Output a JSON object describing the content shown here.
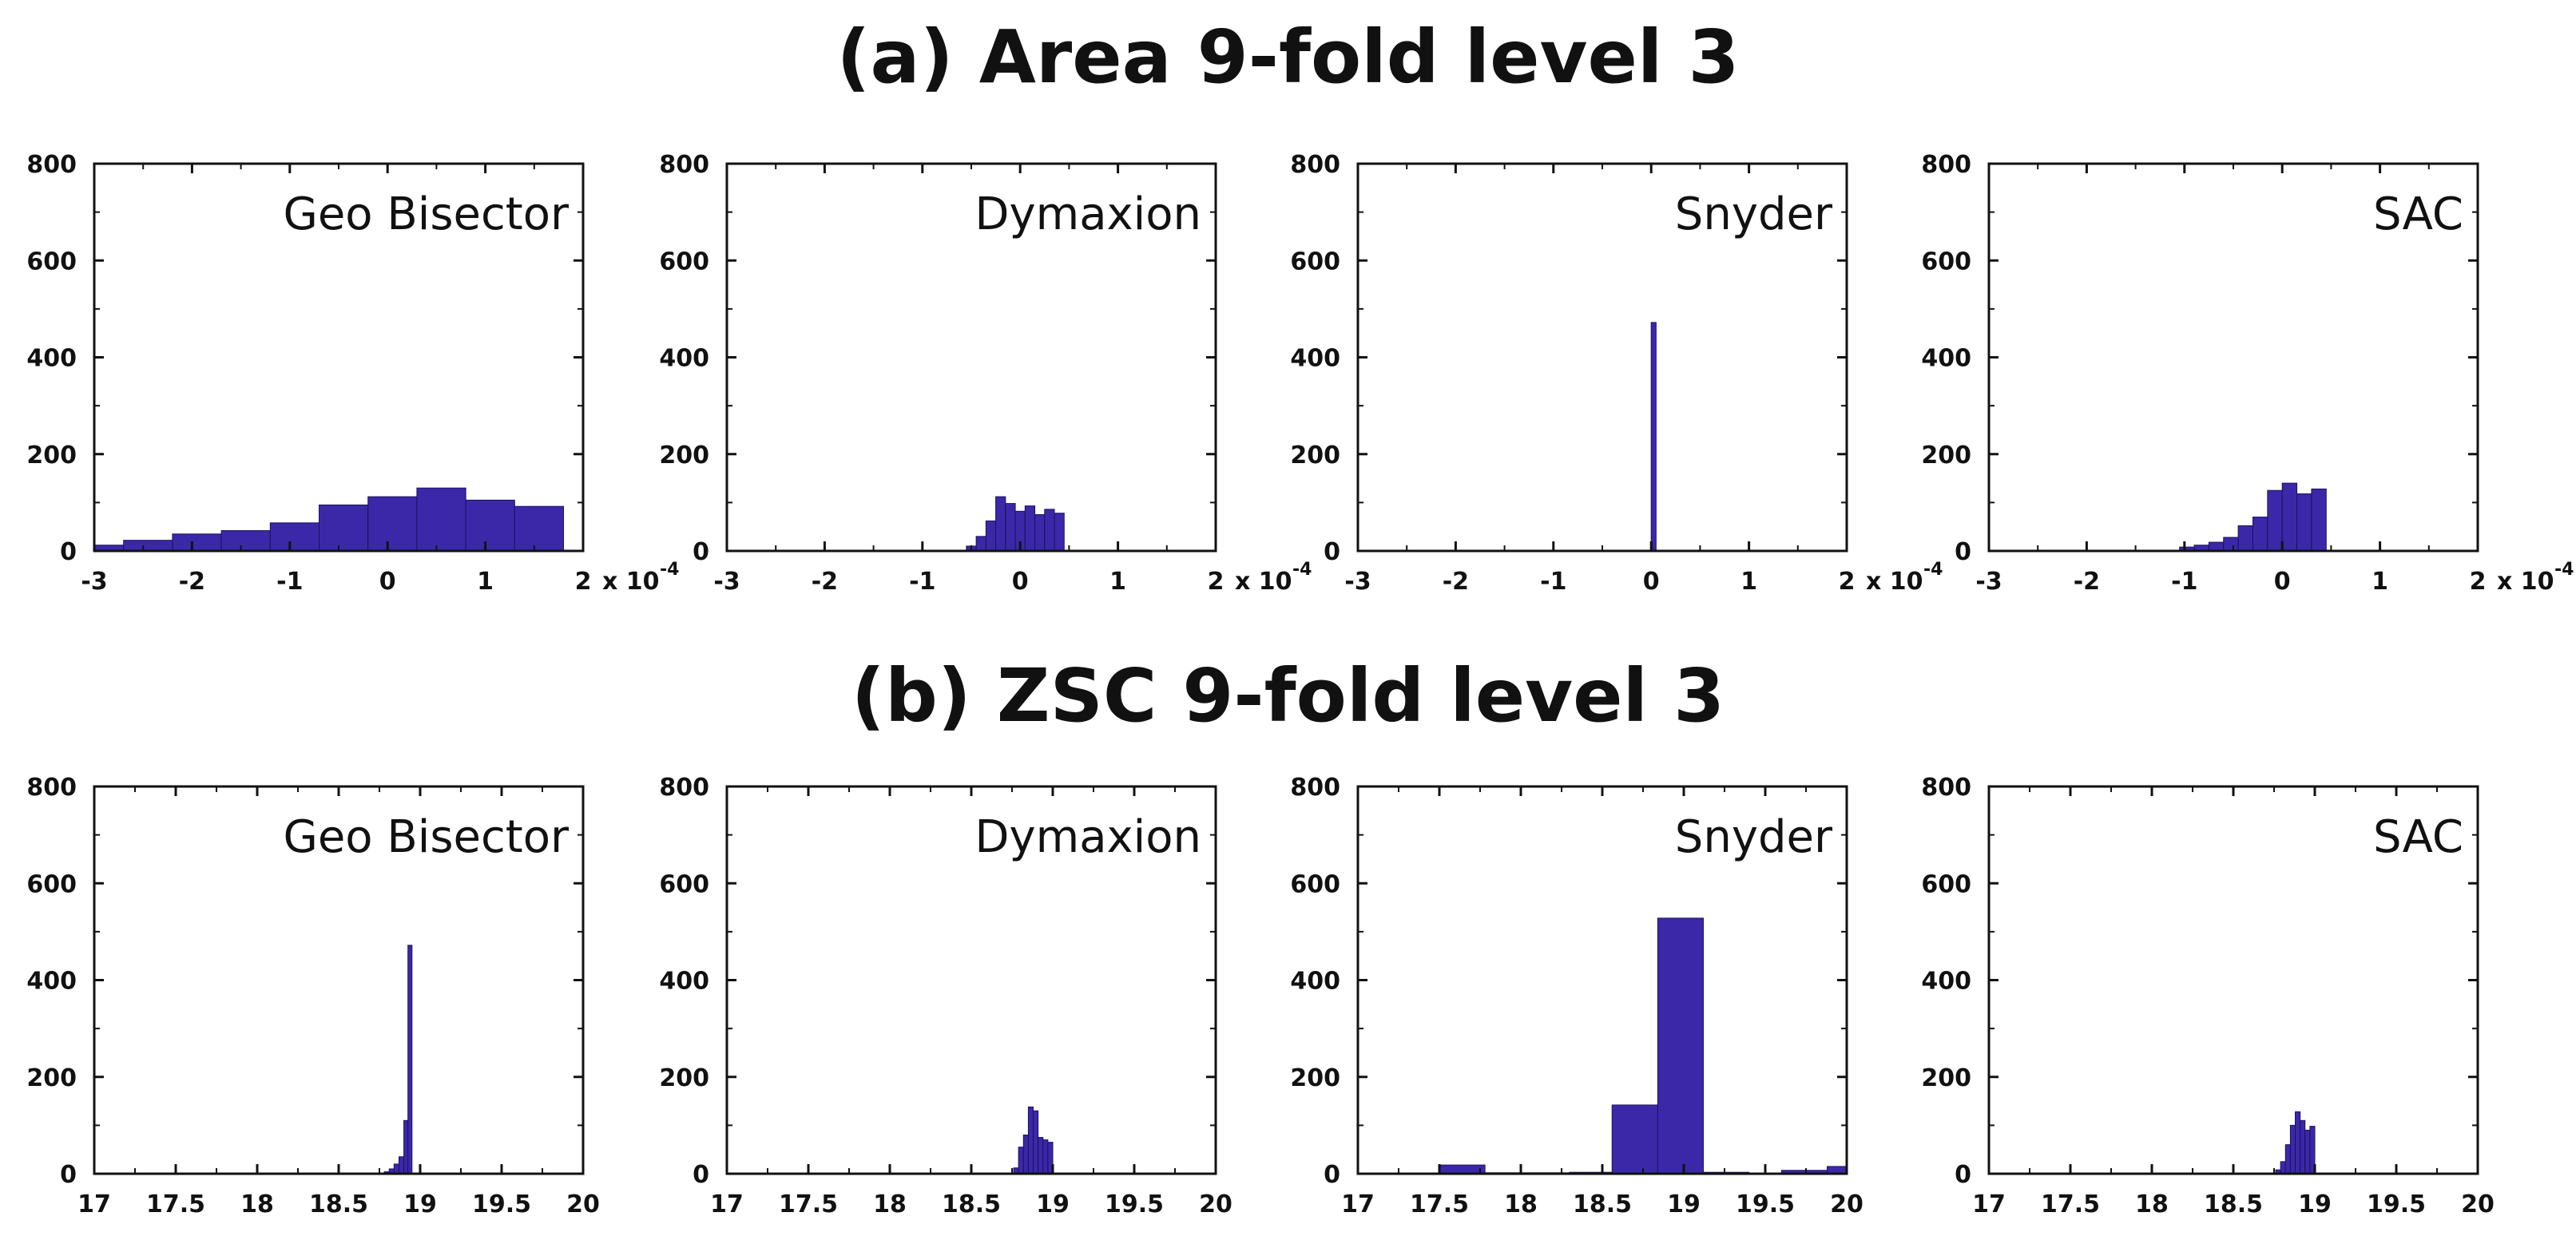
{
  "titles": {
    "a": "(a) Area 9-fold level 3",
    "b": "(b) ZSC 9-fold level 3"
  },
  "colors": {
    "bar": "#3b28a8",
    "axis": "#111111"
  },
  "chart_data": [
    {
      "type": "bar",
      "group": "a",
      "title": "Geo Bisector",
      "xlim": [
        -3,
        2
      ],
      "ylim": [
        0,
        800
      ],
      "xticks": [
        -3,
        -2,
        -1,
        0,
        1,
        2
      ],
      "yticks": [
        0,
        200,
        400,
        600,
        800
      ],
      "xtick_labels": [
        "-3",
        "-2",
        "-1",
        "0",
        "1",
        "2"
      ],
      "ytick_labels": [
        "0",
        "200",
        "400",
        "600",
        "800"
      ],
      "x_multiplier": "x 10",
      "x_exponent": "-4",
      "bins": [
        {
          "x0": -3.0,
          "x1": -2.7,
          "y": 12
        },
        {
          "x0": -2.7,
          "x1": -2.2,
          "y": 22
        },
        {
          "x0": -2.2,
          "x1": -1.7,
          "y": 35
        },
        {
          "x0": -1.7,
          "x1": -1.2,
          "y": 42
        },
        {
          "x0": -1.2,
          "x1": -0.7,
          "y": 58
        },
        {
          "x0": -0.7,
          "x1": -0.2,
          "y": 95
        },
        {
          "x0": -0.2,
          "x1": 0.3,
          "y": 112
        },
        {
          "x0": 0.3,
          "x1": 0.8,
          "y": 130
        },
        {
          "x0": 0.8,
          "x1": 1.3,
          "y": 105
        },
        {
          "x0": 1.3,
          "x1": 1.8,
          "y": 92
        }
      ]
    },
    {
      "type": "bar",
      "group": "a",
      "title": "Dymaxion",
      "xlim": [
        -3,
        2
      ],
      "ylim": [
        0,
        800
      ],
      "xticks": [
        -3,
        -2,
        -1,
        0,
        1,
        2
      ],
      "yticks": [
        0,
        200,
        400,
        600,
        800
      ],
      "xtick_labels": [
        "-3",
        "-2",
        "-1",
        "0",
        "1",
        "2"
      ],
      "ytick_labels": [
        "0",
        "200",
        "400",
        "600",
        "800"
      ],
      "x_multiplier": "x 10",
      "x_exponent": "-4",
      "bins": [
        {
          "x0": -0.55,
          "x1": -0.45,
          "y": 10
        },
        {
          "x0": -0.45,
          "x1": -0.35,
          "y": 30
        },
        {
          "x0": -0.35,
          "x1": -0.25,
          "y": 62
        },
        {
          "x0": -0.25,
          "x1": -0.15,
          "y": 112
        },
        {
          "x0": -0.15,
          "x1": -0.05,
          "y": 98
        },
        {
          "x0": -0.05,
          "x1": 0.05,
          "y": 82
        },
        {
          "x0": 0.05,
          "x1": 0.15,
          "y": 93
        },
        {
          "x0": 0.15,
          "x1": 0.25,
          "y": 75
        },
        {
          "x0": 0.25,
          "x1": 0.35,
          "y": 86
        },
        {
          "x0": 0.35,
          "x1": 0.45,
          "y": 78
        }
      ]
    },
    {
      "type": "bar",
      "group": "a",
      "title": "Snyder",
      "xlim": [
        -3,
        2
      ],
      "ylim": [
        0,
        800
      ],
      "xticks": [
        -3,
        -2,
        -1,
        0,
        1,
        2
      ],
      "yticks": [
        0,
        200,
        400,
        600,
        800
      ],
      "xtick_labels": [
        "-3",
        "-2",
        "-1",
        "0",
        "1",
        "2"
      ],
      "ytick_labels": [
        "0",
        "200",
        "400",
        "600",
        "800"
      ],
      "x_multiplier": "x 10",
      "x_exponent": "-4",
      "bins": [
        {
          "x0": 0.0,
          "x1": 0.05,
          "y": 472
        }
      ]
    },
    {
      "type": "bar",
      "group": "a",
      "title": "SAC",
      "xlim": [
        -3,
        2
      ],
      "ylim": [
        0,
        800
      ],
      "xticks": [
        -3,
        -2,
        -1,
        0,
        1,
        2
      ],
      "yticks": [
        0,
        200,
        400,
        600,
        800
      ],
      "xtick_labels": [
        "-3",
        "-2",
        "-1",
        "0",
        "1",
        "2"
      ],
      "ytick_labels": [
        "0",
        "200",
        "400",
        "600",
        "800"
      ],
      "x_multiplier": "x 10",
      "x_exponent": "-4",
      "bins": [
        {
          "x0": -1.05,
          "x1": -0.9,
          "y": 8
        },
        {
          "x0": -0.9,
          "x1": -0.75,
          "y": 12
        },
        {
          "x0": -0.75,
          "x1": -0.6,
          "y": 18
        },
        {
          "x0": -0.6,
          "x1": -0.45,
          "y": 28
        },
        {
          "x0": -0.45,
          "x1": -0.3,
          "y": 52
        },
        {
          "x0": -0.3,
          "x1": -0.15,
          "y": 70
        },
        {
          "x0": -0.15,
          "x1": 0.0,
          "y": 125
        },
        {
          "x0": 0.0,
          "x1": 0.15,
          "y": 140
        },
        {
          "x0": 0.15,
          "x1": 0.3,
          "y": 118
        },
        {
          "x0": 0.3,
          "x1": 0.45,
          "y": 128
        }
      ]
    },
    {
      "type": "bar",
      "group": "b",
      "title": "Geo Bisector",
      "xlim": [
        17,
        20
      ],
      "ylim": [
        0,
        800
      ],
      "xticks": [
        17,
        17.5,
        18,
        18.5,
        19,
        19.5,
        20
      ],
      "yticks": [
        0,
        200,
        400,
        600,
        800
      ],
      "xtick_labels": [
        "17",
        "17.5",
        "18",
        "18.5",
        "19",
        "19.5",
        "20"
      ],
      "ytick_labels": [
        "0",
        "200",
        "400",
        "600",
        "800"
      ],
      "bins": [
        {
          "x0": 18.78,
          "x1": 18.81,
          "y": 4
        },
        {
          "x0": 18.81,
          "x1": 18.84,
          "y": 10
        },
        {
          "x0": 18.84,
          "x1": 18.87,
          "y": 20
        },
        {
          "x0": 18.87,
          "x1": 18.9,
          "y": 35
        },
        {
          "x0": 18.9,
          "x1": 18.925,
          "y": 110
        },
        {
          "x0": 18.925,
          "x1": 18.95,
          "y": 472
        }
      ]
    },
    {
      "type": "bar",
      "group": "b",
      "title": "Dymaxion",
      "xlim": [
        17,
        20
      ],
      "ylim": [
        0,
        800
      ],
      "xticks": [
        17,
        17.5,
        18,
        18.5,
        19,
        19.5,
        20
      ],
      "yticks": [
        0,
        200,
        400,
        600,
        800
      ],
      "xtick_labels": [
        "17",
        "17.5",
        "18",
        "18.5",
        "19",
        "19.5",
        "20"
      ],
      "ytick_labels": [
        "0",
        "200",
        "400",
        "600",
        "800"
      ],
      "bins": [
        {
          "x0": 18.76,
          "x1": 18.79,
          "y": 12
        },
        {
          "x0": 18.79,
          "x1": 18.82,
          "y": 55
        },
        {
          "x0": 18.82,
          "x1": 18.85,
          "y": 80
        },
        {
          "x0": 18.85,
          "x1": 18.88,
          "y": 138
        },
        {
          "x0": 18.88,
          "x1": 18.91,
          "y": 130
        },
        {
          "x0": 18.91,
          "x1": 18.94,
          "y": 75
        },
        {
          "x0": 18.94,
          "x1": 18.97,
          "y": 70
        },
        {
          "x0": 18.97,
          "x1": 19.0,
          "y": 65
        }
      ]
    },
    {
      "type": "bar",
      "group": "b",
      "title": "Snyder",
      "xlim": [
        17,
        20
      ],
      "ylim": [
        0,
        800
      ],
      "xticks": [
        17,
        17.5,
        18,
        18.5,
        19,
        19.5,
        20
      ],
      "yticks": [
        0,
        200,
        400,
        600,
        800
      ],
      "xtick_labels": [
        "17",
        "17.5",
        "18",
        "18.5",
        "19",
        "19.5",
        "20"
      ],
      "ytick_labels": [
        "0",
        "200",
        "400",
        "600",
        "800"
      ],
      "bins": [
        {
          "x0": 17.5,
          "x1": 17.78,
          "y": 18
        },
        {
          "x0": 17.78,
          "x1": 18.3,
          "y": 2
        },
        {
          "x0": 18.3,
          "x1": 18.56,
          "y": 3
        },
        {
          "x0": 18.56,
          "x1": 18.84,
          "y": 142
        },
        {
          "x0": 18.84,
          "x1": 19.12,
          "y": 528
        },
        {
          "x0": 19.12,
          "x1": 19.4,
          "y": 3
        },
        {
          "x0": 19.6,
          "x1": 19.88,
          "y": 7
        },
        {
          "x0": 19.88,
          "x1": 20.0,
          "y": 15
        }
      ]
    },
    {
      "type": "bar",
      "group": "b",
      "title": "SAC",
      "xlim": [
        17,
        20
      ],
      "ylim": [
        0,
        800
      ],
      "xticks": [
        17,
        17.5,
        18,
        18.5,
        19,
        19.5,
        20
      ],
      "yticks": [
        0,
        200,
        400,
        600,
        800
      ],
      "xtick_labels": [
        "17",
        "17.5",
        "18",
        "18.5",
        "19",
        "19.5",
        "20"
      ],
      "ytick_labels": [
        "0",
        "200",
        "400",
        "600",
        "800"
      ],
      "bins": [
        {
          "x0": 18.76,
          "x1": 18.79,
          "y": 8
        },
        {
          "x0": 18.79,
          "x1": 18.82,
          "y": 25
        },
        {
          "x0": 18.82,
          "x1": 18.85,
          "y": 60
        },
        {
          "x0": 18.85,
          "x1": 18.88,
          "y": 100
        },
        {
          "x0": 18.88,
          "x1": 18.91,
          "y": 128
        },
        {
          "x0": 18.91,
          "x1": 18.94,
          "y": 110
        },
        {
          "x0": 18.94,
          "x1": 18.97,
          "y": 90
        },
        {
          "x0": 18.97,
          "x1": 19.0,
          "y": 98
        }
      ]
    }
  ]
}
